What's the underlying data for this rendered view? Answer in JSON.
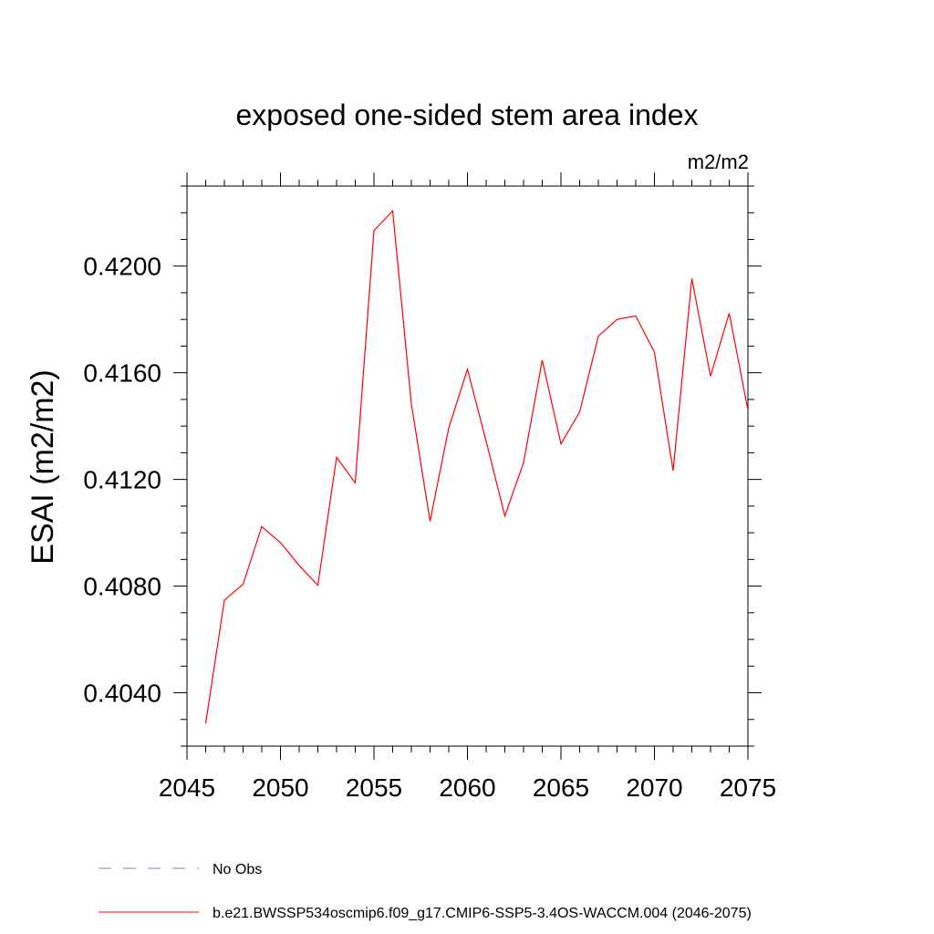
{
  "chart_data": {
    "type": "line",
    "title": "exposed one-sided stem area index",
    "units": "m2/m2",
    "xlabel": "",
    "ylabel": "ESAI  (m2/m2)",
    "xlim": [
      2045,
      2075
    ],
    "ylim": [
      0.402,
      0.423
    ],
    "xticks": [
      2045,
      2050,
      2055,
      2060,
      2065,
      2070,
      2075
    ],
    "xtick_labels": [
      "2045",
      "2050",
      "2055",
      "2060",
      "2065",
      "2070",
      "2075"
    ],
    "yticks": [
      0.404,
      0.408,
      0.412,
      0.416,
      0.42
    ],
    "ytick_labels": [
      "0.4040",
      "0.4080",
      "0.4120",
      "0.4160",
      "0.4200"
    ],
    "series": [
      {
        "name": "b.e21.BWSSP534oscmip6.f09_g17.CMIP6-SSP5-3.4OS-WACCM.004 (2046-2075)",
        "color": "#ff0000",
        "x": [
          2046,
          2047,
          2048,
          2049,
          2050,
          2051,
          2052,
          2053,
          2054,
          2055,
          2056,
          2057,
          2058,
          2059,
          2060,
          2061,
          2062,
          2063,
          2064,
          2065,
          2066,
          2067,
          2068,
          2069,
          2070,
          2071,
          2072,
          2073,
          2074,
          2075
        ],
        "values": [
          0.40285,
          0.40747,
          0.40807,
          0.41023,
          0.40963,
          0.40877,
          0.40803,
          0.41283,
          0.41187,
          0.42133,
          0.42207,
          0.41483,
          0.41043,
          0.41393,
          0.41613,
          0.41343,
          0.41063,
          0.41263,
          0.41647,
          0.41333,
          0.41453,
          0.41737,
          0.418,
          0.41813,
          0.41677,
          0.41233,
          0.41953,
          0.41587,
          0.41823,
          0.4146
        ]
      }
    ],
    "legend": [
      {
        "label": "No Obs",
        "style": "dashed",
        "color": "#8080c0"
      },
      {
        "label": "b.e21.BWSSP534oscmip6.f09_g17.CMIP6-SSP5-3.4OS-WACCM.004 (2046-2075)",
        "style": "solid",
        "color": "#ff0000"
      }
    ],
    "legend_position": "bottom",
    "grid": false
  }
}
